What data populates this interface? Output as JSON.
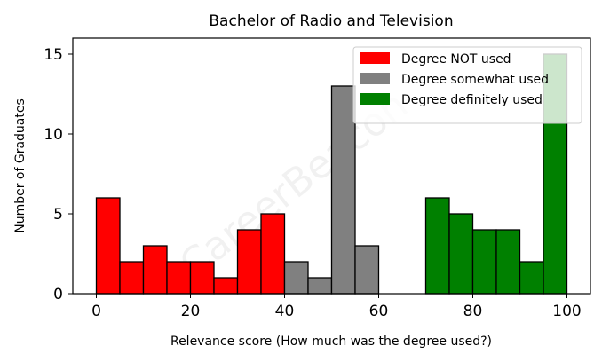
{
  "chart_data": {
    "type": "bar",
    "title": "Bachelor of Radio and Television",
    "xlabel": "Relevance score (How much was the degree used?)",
    "ylabel": "Number of Graduates",
    "xlim": [
      -5,
      105
    ],
    "ylim": [
      0,
      16
    ],
    "xticks": [
      0,
      20,
      40,
      60,
      80,
      100
    ],
    "yticks": [
      0,
      5,
      10,
      15
    ],
    "bin_width": 5,
    "legend_position": "top-right",
    "watermark": "CareerBeacon",
    "series": [
      {
        "name": "Degree NOT used",
        "color": "#ff0000",
        "bins": [
          {
            "x0": 0,
            "x1": 5,
            "value": 6
          },
          {
            "x0": 5,
            "x1": 10,
            "value": 2
          },
          {
            "x0": 10,
            "x1": 15,
            "value": 3
          },
          {
            "x0": 15,
            "x1": 20,
            "value": 2
          },
          {
            "x0": 20,
            "x1": 25,
            "value": 2
          },
          {
            "x0": 25,
            "x1": 30,
            "value": 1
          },
          {
            "x0": 30,
            "x1": 35,
            "value": 4
          },
          {
            "x0": 35,
            "x1": 40,
            "value": 5
          }
        ]
      },
      {
        "name": "Degree somewhat used",
        "color": "#808080",
        "bins": [
          {
            "x0": 40,
            "x1": 45,
            "value": 2
          },
          {
            "x0": 45,
            "x1": 50,
            "value": 1
          },
          {
            "x0": 50,
            "x1": 55,
            "value": 13
          },
          {
            "x0": 55,
            "x1": 60,
            "value": 3
          }
        ]
      },
      {
        "name": "Degree definitely used",
        "color": "#008000",
        "bins": [
          {
            "x0": 70,
            "x1": 75,
            "value": 6
          },
          {
            "x0": 75,
            "x1": 80,
            "value": 5
          },
          {
            "x0": 80,
            "x1": 85,
            "value": 4
          },
          {
            "x0": 85,
            "x1": 90,
            "value": 4
          },
          {
            "x0": 90,
            "x1": 95,
            "value": 2
          },
          {
            "x0": 95,
            "x1": 100,
            "value": 15
          }
        ]
      }
    ]
  }
}
